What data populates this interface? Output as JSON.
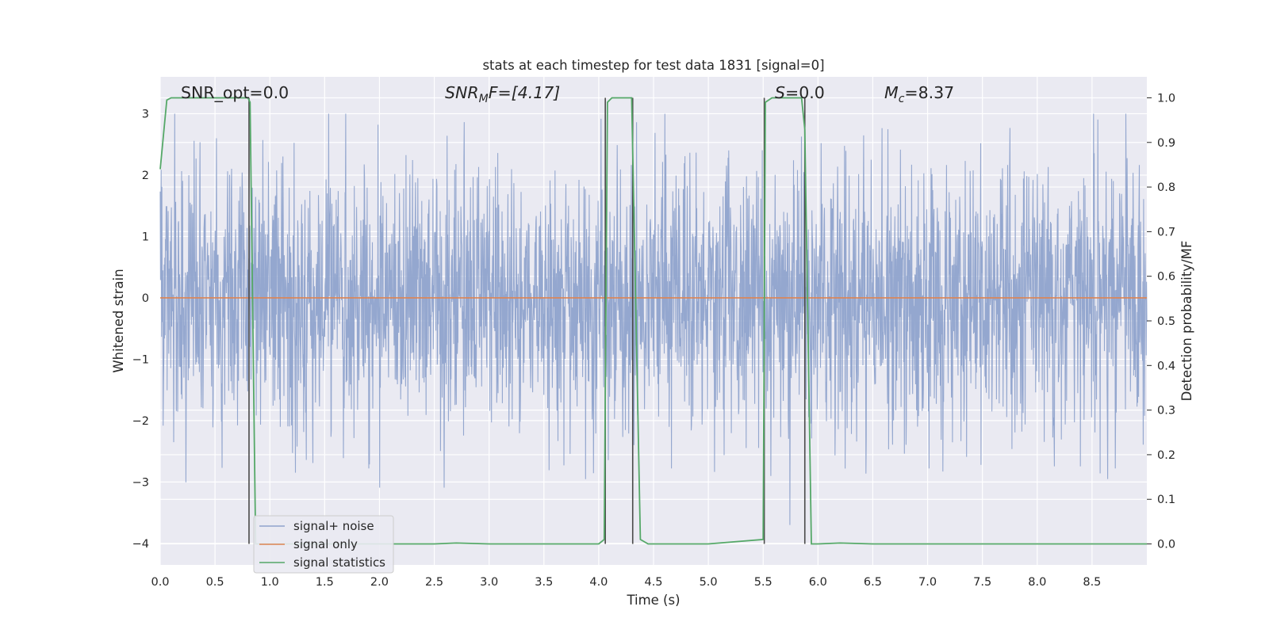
{
  "chart_data": {
    "type": "line",
    "title": "stats at each timestep for test data 1831 [signal=0]",
    "xlabel": "Time (s)",
    "ylabel": "Whitened strain",
    "ylabel_right": "Detection probability/MF",
    "xlim": [
      0.0,
      9.0
    ],
    "ylim": [
      -4.35,
      3.6
    ],
    "ylim_right": [
      -0.047,
      1.047
    ],
    "x_ticks": [
      "0.0",
      "0.5",
      "1.0",
      "1.5",
      "2.0",
      "2.5",
      "3.0",
      "3.5",
      "4.0",
      "4.5",
      "5.0",
      "5.5",
      "6.0",
      "6.5",
      "7.0",
      "7.5",
      "8.0",
      "8.5"
    ],
    "y_ticks": [
      "3",
      "2",
      "1",
      "0",
      "−1",
      "−2",
      "−3",
      "−4"
    ],
    "y_ticks_right": [
      "1.0",
      "0.9",
      "0.8",
      "0.7",
      "0.6",
      "0.5",
      "0.4",
      "0.3",
      "0.2",
      "0.1",
      "0.0"
    ],
    "grid": true,
    "legend": {
      "placement": "lower-left",
      "entries": [
        {
          "label": "signal+ noise",
          "color": "#8fa3cc"
        },
        {
          "label": "signal only",
          "color": "#dd8452"
        },
        {
          "label": "signal statistics",
          "color": "#55a868"
        }
      ]
    },
    "annotations": {
      "snr_opt": "SNR_opt=0.0",
      "snr_mf_prefix": "SNR",
      "snr_mf_sub": "M",
      "snr_mf_suffix": "F=[4.17]",
      "s_prefix": "S",
      "s_suffix": "=0.0",
      "mc_prefix": "M",
      "mc_sub": "c",
      "mc_suffix": "=8.37"
    },
    "series": [
      {
        "name": "signal+ noise",
        "color": "#8fa3cc",
        "description": "whitened noise, approx. range -3.7 to 3.0 across 0-9 s",
        "amplitude_range": [
          -3.7,
          3.0
        ]
      },
      {
        "name": "signal only",
        "color": "#dd8452",
        "x": [
          0.0,
          9.0
        ],
        "y": [
          0.0,
          0.0
        ]
      },
      {
        "name": "signal statistics",
        "color": "#55a868",
        "axis": "right",
        "x": [
          0.0,
          0.06,
          0.1,
          0.2,
          0.4,
          0.6,
          0.7,
          0.8,
          0.82,
          0.87,
          0.92,
          1.1,
          1.5,
          2.0,
          2.5,
          2.7,
          3.0,
          3.5,
          4.0,
          4.05,
          4.08,
          4.12,
          4.3,
          4.38,
          4.45,
          4.6,
          5.0,
          5.5,
          5.52,
          5.58,
          5.65,
          5.85,
          5.88,
          5.94,
          6.0,
          6.2,
          6.5,
          7.0,
          8.0,
          9.0
        ],
        "y": [
          0.84,
          0.995,
          1.0,
          1.0,
          1.0,
          1.0,
          1.0,
          1.0,
          0.99,
          0.0,
          0.0,
          0.0,
          0.0,
          0.0,
          0.0,
          0.002,
          0.0,
          0.0,
          0.0,
          0.01,
          0.99,
          1.0,
          1.0,
          0.01,
          0.0,
          0.0,
          0.0,
          0.01,
          0.99,
          1.0,
          1.0,
          1.0,
          0.93,
          0.0,
          0.0,
          0.002,
          0.0,
          0.0,
          0.0,
          0.0
        ]
      }
    ],
    "vertical_markers_x": [
      0.81,
      4.06,
      4.31,
      5.51,
      5.88
    ]
  }
}
